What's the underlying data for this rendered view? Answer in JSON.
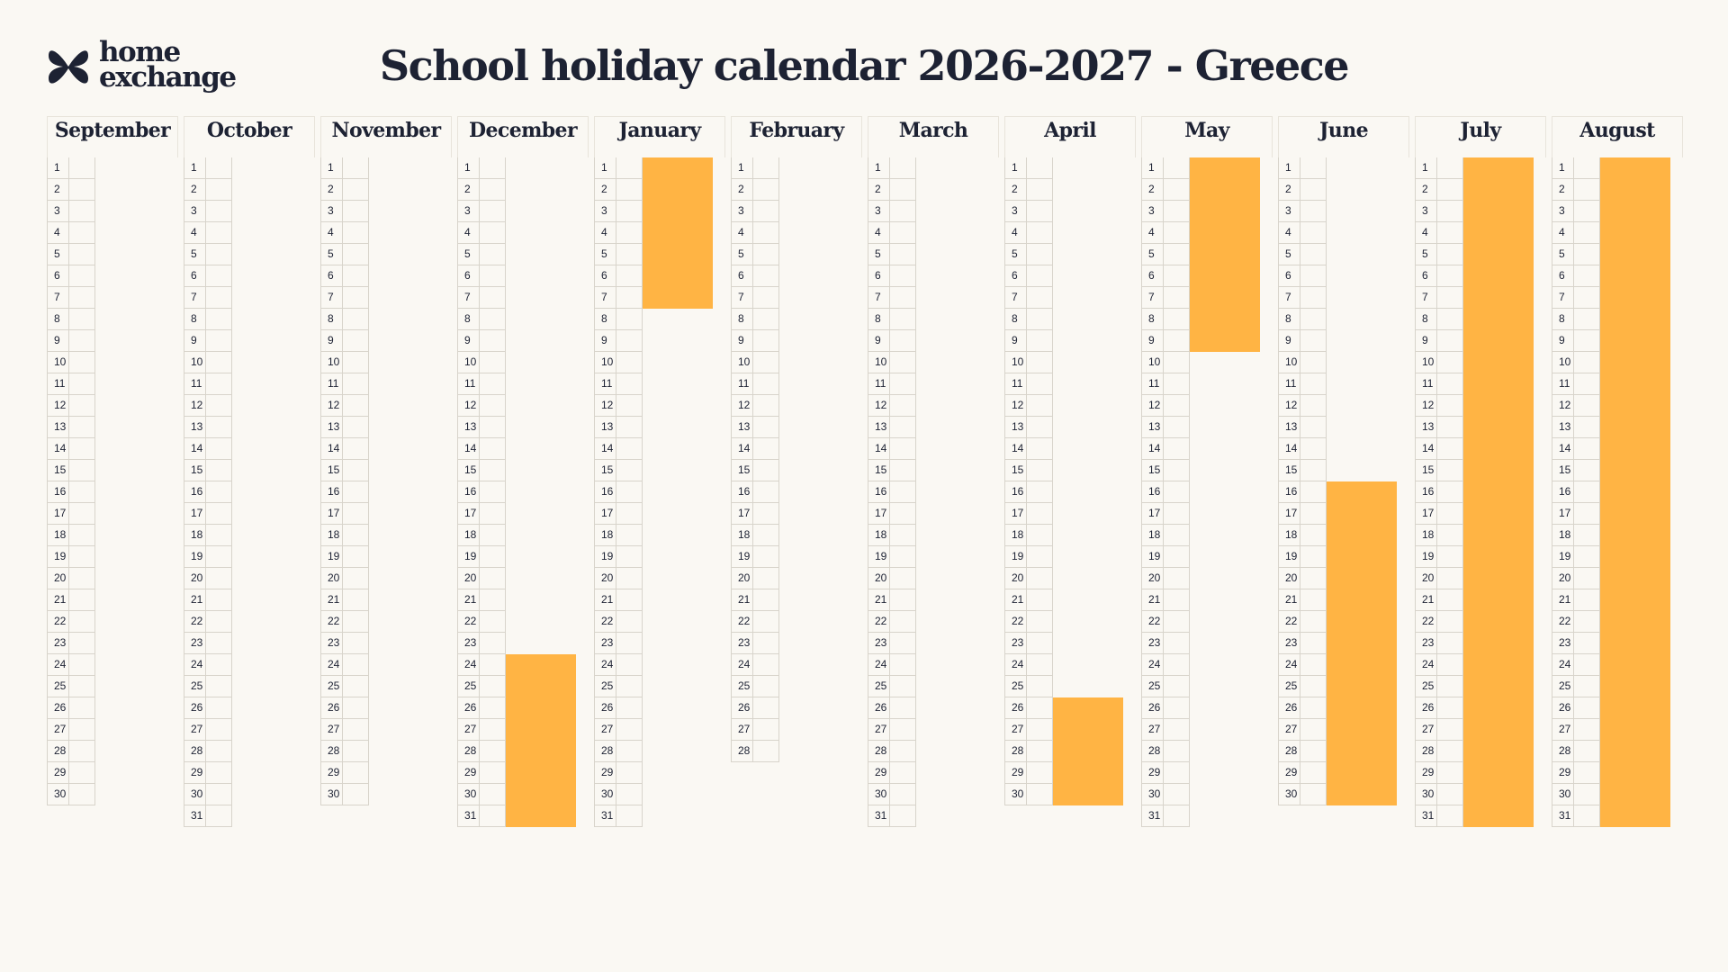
{
  "logo": {
    "line1": "home",
    "line2": "exchange"
  },
  "title": "School holiday calendar 2026-2027 - Greece",
  "colors": {
    "holiday": "#FFB444",
    "text": "#1D2233",
    "background": "#FAF8F3"
  },
  "months": [
    {
      "name": "September",
      "days": 30,
      "holidays": []
    },
    {
      "name": "October",
      "days": 31,
      "holidays": []
    },
    {
      "name": "November",
      "days": 30,
      "holidays": []
    },
    {
      "name": "December",
      "days": 31,
      "holidays": [
        [
          24,
          31
        ]
      ]
    },
    {
      "name": "January",
      "days": 31,
      "holidays": [
        [
          1,
          7
        ]
      ]
    },
    {
      "name": "February",
      "days": 28,
      "holidays": []
    },
    {
      "name": "March",
      "days": 31,
      "holidays": []
    },
    {
      "name": "April",
      "days": 30,
      "holidays": [
        [
          26,
          30
        ]
      ]
    },
    {
      "name": "May",
      "days": 31,
      "holidays": [
        [
          1,
          9
        ]
      ]
    },
    {
      "name": "June",
      "days": 30,
      "holidays": [
        [
          16,
          30
        ]
      ]
    },
    {
      "name": "July",
      "days": 31,
      "holidays": [
        [
          1,
          31
        ]
      ]
    },
    {
      "name": "August",
      "days": 31,
      "holidays": [
        [
          1,
          31
        ]
      ]
    }
  ]
}
